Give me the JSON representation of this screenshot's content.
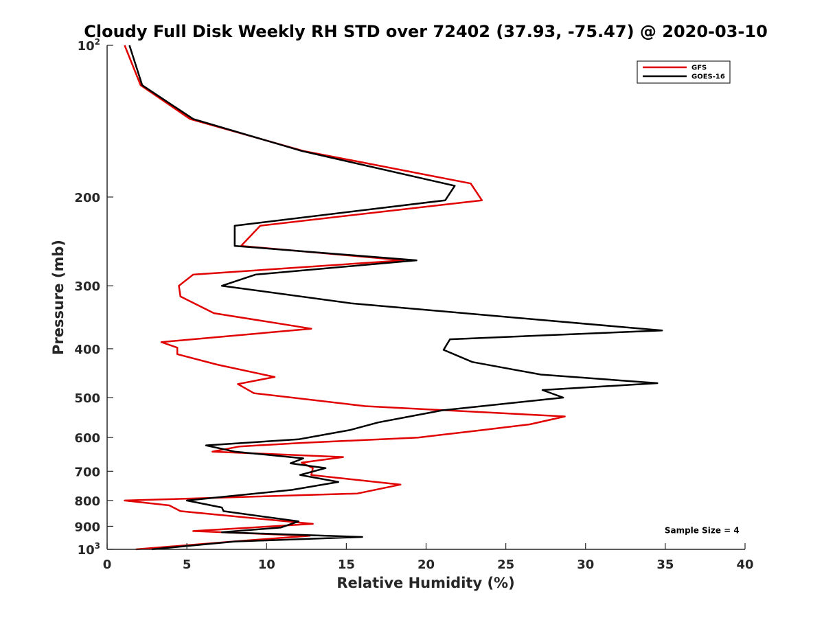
{
  "chart_data": {
    "type": "line",
    "title": "Cloudy Full Disk Weekly RH STD over 72402 (37.93, -75.47) @ 2020-03-10",
    "xlabel": "Relative Humidity (%)",
    "ylabel": "Pressure (mb)",
    "xlim": [
      0,
      40
    ],
    "ylim": [
      100,
      1000
    ],
    "y_scale": "log",
    "y_reversed": true,
    "grid": false,
    "legend_position": "top-right",
    "x_ticks": [
      "0",
      "5",
      "10",
      "15",
      "20",
      "25",
      "30",
      "35",
      "40"
    ],
    "y_ticks": [
      {
        "value": 100,
        "label": "10",
        "sup": "2"
      },
      {
        "value": 200,
        "label": "200",
        "sup": ""
      },
      {
        "value": 300,
        "label": "300",
        "sup": ""
      },
      {
        "value": 400,
        "label": "400",
        "sup": ""
      },
      {
        "value": 500,
        "label": "500",
        "sup": ""
      },
      {
        "value": 600,
        "label": "600",
        "sup": ""
      },
      {
        "value": 700,
        "label": "700",
        "sup": ""
      },
      {
        "value": 800,
        "label": "800",
        "sup": ""
      },
      {
        "value": 900,
        "label": "900",
        "sup": ""
      },
      {
        "value": 1000,
        "label": "10",
        "sup": "3"
      }
    ],
    "series": [
      {
        "name": "GFS",
        "color": "#e00000",
        "points": [
          [
            1.1,
            100
          ],
          [
            2.1,
            120
          ],
          [
            5.2,
            140
          ],
          [
            12.3,
            162
          ],
          [
            22.8,
            188
          ],
          [
            23.5,
            203
          ],
          [
            9.6,
            228
          ],
          [
            8.4,
            250
          ],
          [
            18.6,
            267
          ],
          [
            5.4,
            285
          ],
          [
            4.5,
            300
          ],
          [
            4.6,
            315
          ],
          [
            6.7,
            340
          ],
          [
            12.8,
            365
          ],
          [
            3.4,
            388
          ],
          [
            4.4,
            398
          ],
          [
            4.4,
            410
          ],
          [
            6.9,
            430
          ],
          [
            10.5,
            455
          ],
          [
            8.2,
            470
          ],
          [
            9.2,
            490
          ],
          [
            16.2,
            520
          ],
          [
            28.7,
            545
          ],
          [
            26.5,
            565
          ],
          [
            23.5,
            580
          ],
          [
            19.5,
            600
          ],
          [
            12.2,
            615
          ],
          [
            8.3,
            625
          ],
          [
            6.6,
            640
          ],
          [
            14.8,
            656
          ],
          [
            12.2,
            673
          ],
          [
            12.9,
            690
          ],
          [
            12.8,
            712
          ],
          [
            18.4,
            744
          ],
          [
            15.7,
            775
          ],
          [
            1.1,
            800
          ],
          [
            3.9,
            818
          ],
          [
            4.6,
            840
          ],
          [
            12.9,
            890
          ],
          [
            5.4,
            920
          ],
          [
            12.7,
            940
          ],
          [
            7.9,
            965
          ],
          [
            1.8,
            1000
          ]
        ]
      },
      {
        "name": "GOES-16",
        "color": "#000000",
        "points": [
          [
            1.4,
            100
          ],
          [
            2.2,
            120
          ],
          [
            5.4,
            140
          ],
          [
            12.2,
            162
          ],
          [
            21.8,
            190
          ],
          [
            21.2,
            203
          ],
          [
            8.0,
            228
          ],
          [
            8.0,
            250
          ],
          [
            19.4,
            267
          ],
          [
            9.3,
            285
          ],
          [
            7.2,
            300
          ],
          [
            15.3,
            325
          ],
          [
            34.8,
            368
          ],
          [
            21.5,
            383
          ],
          [
            21.1,
            402
          ],
          [
            22.9,
            425
          ],
          [
            27.2,
            450
          ],
          [
            34.5,
            468
          ],
          [
            27.3,
            483
          ],
          [
            28.6,
            500
          ],
          [
            21.0,
            530
          ],
          [
            17.0,
            560
          ],
          [
            15.2,
            580
          ],
          [
            12.0,
            605
          ],
          [
            6.2,
            622
          ],
          [
            8.0,
            640
          ],
          [
            12.3,
            660
          ],
          [
            11.5,
            675
          ],
          [
            13.7,
            690
          ],
          [
            12.1,
            712
          ],
          [
            14.5,
            735
          ],
          [
            11.6,
            762
          ],
          [
            5.0,
            800
          ],
          [
            7.2,
            826
          ],
          [
            7.3,
            840
          ],
          [
            12.0,
            880
          ],
          [
            10.9,
            905
          ],
          [
            7.2,
            925
          ],
          [
            16.0,
            945
          ],
          [
            8.0,
            965
          ],
          [
            2.8,
            1000
          ]
        ]
      }
    ],
    "annotations": [
      {
        "text": "Sample Size = 4",
        "x": 37.3,
        "y": 918
      }
    ]
  }
}
